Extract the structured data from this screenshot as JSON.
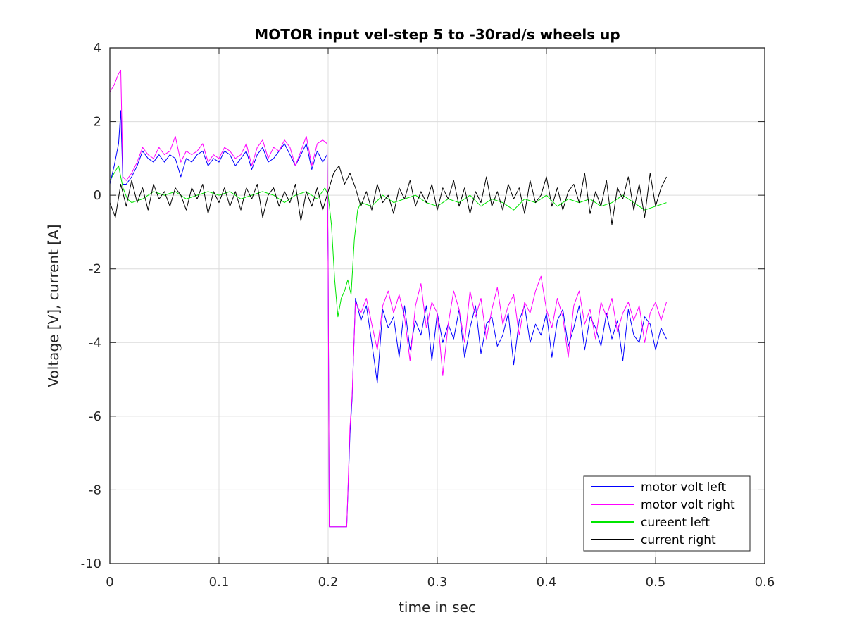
{
  "chart_data": {
    "type": "line",
    "title": "MOTOR input vel-step 5 to -30rad/s wheels up",
    "xlabel": "time in sec",
    "ylabel": "Voltage [V], current [A]",
    "xlim": [
      0,
      0.6
    ],
    "ylim": [
      -10,
      4
    ],
    "xticks": [
      0,
      0.1,
      0.2,
      0.3,
      0.4,
      0.5,
      0.6
    ],
    "xtick_labels": [
      "0",
      "0.1",
      "0.2",
      "0.3",
      "0.4",
      "0.5",
      "0.6"
    ],
    "yticks": [
      -10,
      -8,
      -6,
      -4,
      -2,
      0,
      2,
      4
    ],
    "ytick_labels": [
      "-10",
      "-8",
      "-6",
      "-4",
      "-2",
      "0",
      "2",
      "4"
    ],
    "grid": true,
    "legend_position": "bottom-right",
    "series": [
      {
        "name": "motor volt left",
        "color": "#0000ff",
        "x": [
          0,
          0.004,
          0.008,
          0.01,
          0.012,
          0.015,
          0.02,
          0.025,
          0.03,
          0.035,
          0.04,
          0.045,
          0.05,
          0.055,
          0.06,
          0.065,
          0.07,
          0.075,
          0.08,
          0.085,
          0.09,
          0.095,
          0.1,
          0.105,
          0.11,
          0.115,
          0.12,
          0.125,
          0.13,
          0.135,
          0.14,
          0.145,
          0.15,
          0.155,
          0.16,
          0.165,
          0.17,
          0.175,
          0.18,
          0.185,
          0.19,
          0.195,
          0.199,
          0.2,
          0.201,
          0.205,
          0.21,
          0.215,
          0.217,
          0.22,
          0.222,
          0.225,
          0.23,
          0.235,
          0.24,
          0.245,
          0.25,
          0.255,
          0.26,
          0.265,
          0.27,
          0.275,
          0.28,
          0.285,
          0.29,
          0.295,
          0.3,
          0.305,
          0.31,
          0.315,
          0.32,
          0.325,
          0.33,
          0.335,
          0.34,
          0.345,
          0.35,
          0.355,
          0.36,
          0.365,
          0.37,
          0.375,
          0.38,
          0.385,
          0.39,
          0.395,
          0.4,
          0.405,
          0.41,
          0.415,
          0.42,
          0.425,
          0.43,
          0.435,
          0.44,
          0.445,
          0.45,
          0.455,
          0.46,
          0.465,
          0.47,
          0.475,
          0.48,
          0.485,
          0.49,
          0.495,
          0.5,
          0.505,
          0.51
        ],
        "y": [
          0.3,
          0.8,
          1.4,
          2.3,
          0.3,
          0.3,
          0.5,
          0.8,
          1.2,
          1.0,
          0.9,
          1.1,
          0.9,
          1.1,
          1.0,
          0.5,
          1.0,
          0.9,
          1.1,
          1.2,
          0.8,
          1.0,
          0.9,
          1.2,
          1.1,
          0.8,
          1.0,
          1.2,
          0.7,
          1.1,
          1.3,
          0.9,
          1.0,
          1.2,
          1.4,
          1.1,
          0.8,
          1.1,
          1.4,
          0.7,
          1.2,
          0.9,
          1.1,
          -1.8,
          -9.0,
          -9.0,
          -9.0,
          -9.0,
          -9.0,
          -6.5,
          -5.5,
          -2.8,
          -3.4,
          -3.0,
          -4.0,
          -5.1,
          -3.1,
          -3.6,
          -3.3,
          -4.4,
          -3.0,
          -4.2,
          -3.4,
          -3.8,
          -3.0,
          -4.5,
          -3.2,
          -4.0,
          -3.5,
          -3.9,
          -3.1,
          -4.4,
          -3.6,
          -3.0,
          -4.3,
          -3.5,
          -3.3,
          -4.1,
          -3.8,
          -3.2,
          -4.6,
          -3.4,
          -3.0,
          -4.0,
          -3.5,
          -3.8,
          -3.2,
          -4.4,
          -3.4,
          -3.1,
          -4.1,
          -3.6,
          -3.0,
          -4.2,
          -3.3,
          -3.6,
          -4.1,
          -3.2,
          -3.9,
          -3.4,
          -4.5,
          -3.1,
          -3.8,
          -4.0,
          -3.3,
          -3.5,
          -4.2,
          -3.6,
          -3.9
        ]
      },
      {
        "name": "motor volt right",
        "color": "#ff00ff",
        "x": [
          0,
          0.004,
          0.008,
          0.01,
          0.012,
          0.015,
          0.02,
          0.025,
          0.03,
          0.035,
          0.04,
          0.045,
          0.05,
          0.055,
          0.06,
          0.065,
          0.07,
          0.075,
          0.08,
          0.085,
          0.09,
          0.095,
          0.1,
          0.105,
          0.11,
          0.115,
          0.12,
          0.125,
          0.13,
          0.135,
          0.14,
          0.145,
          0.15,
          0.155,
          0.16,
          0.165,
          0.17,
          0.175,
          0.18,
          0.185,
          0.19,
          0.195,
          0.199,
          0.2,
          0.201,
          0.205,
          0.21,
          0.215,
          0.217,
          0.22,
          0.222,
          0.225,
          0.23,
          0.235,
          0.24,
          0.245,
          0.25,
          0.255,
          0.26,
          0.265,
          0.27,
          0.275,
          0.28,
          0.285,
          0.29,
          0.295,
          0.3,
          0.305,
          0.31,
          0.315,
          0.32,
          0.325,
          0.33,
          0.335,
          0.34,
          0.345,
          0.35,
          0.355,
          0.36,
          0.365,
          0.37,
          0.375,
          0.38,
          0.385,
          0.39,
          0.395,
          0.4,
          0.405,
          0.41,
          0.415,
          0.42,
          0.425,
          0.43,
          0.435,
          0.44,
          0.445,
          0.45,
          0.455,
          0.46,
          0.465,
          0.47,
          0.475,
          0.48,
          0.485,
          0.49,
          0.495,
          0.5,
          0.505,
          0.51
        ],
        "y": [
          2.8,
          3.0,
          3.3,
          3.4,
          0.5,
          0.4,
          0.6,
          0.9,
          1.3,
          1.1,
          1.0,
          1.3,
          1.1,
          1.2,
          1.6,
          0.9,
          1.2,
          1.1,
          1.2,
          1.4,
          0.9,
          1.1,
          1.0,
          1.3,
          1.2,
          1.0,
          1.1,
          1.4,
          0.8,
          1.3,
          1.5,
          1.0,
          1.3,
          1.2,
          1.5,
          1.3,
          0.8,
          1.2,
          1.6,
          0.8,
          1.4,
          1.5,
          1.4,
          -1.9,
          -9.0,
          -9.0,
          -9.0,
          -9.0,
          -9.0,
          -6.3,
          -5.4,
          -2.9,
          -3.2,
          -2.8,
          -3.5,
          -4.2,
          -3.0,
          -2.6,
          -3.2,
          -2.7,
          -3.3,
          -4.5,
          -3.0,
          -2.4,
          -3.6,
          -2.9,
          -3.2,
          -4.9,
          -3.5,
          -2.6,
          -3.1,
          -4.0,
          -2.6,
          -3.3,
          -2.8,
          -3.9,
          -3.1,
          -2.5,
          -3.5,
          -3.0,
          -2.7,
          -3.8,
          -2.9,
          -3.2,
          -2.6,
          -2.2,
          -3.1,
          -3.6,
          -2.8,
          -3.3,
          -4.4,
          -3.0,
          -2.6,
          -3.5,
          -3.1,
          -3.9,
          -2.9,
          -3.3,
          -2.8,
          -3.7,
          -3.2,
          -2.9,
          -3.4,
          -3.0,
          -4.0,
          -3.2,
          -2.9,
          -3.4,
          -2.9
        ]
      },
      {
        "name": "cureent left",
        "color": "#00e600",
        "x": [
          0,
          0.004,
          0.008,
          0.012,
          0.016,
          0.02,
          0.03,
          0.04,
          0.05,
          0.06,
          0.07,
          0.08,
          0.09,
          0.1,
          0.11,
          0.12,
          0.13,
          0.14,
          0.15,
          0.16,
          0.17,
          0.18,
          0.19,
          0.197,
          0.2,
          0.203,
          0.206,
          0.209,
          0.212,
          0.215,
          0.218,
          0.221,
          0.224,
          0.227,
          0.23,
          0.24,
          0.25,
          0.26,
          0.27,
          0.28,
          0.29,
          0.3,
          0.31,
          0.32,
          0.33,
          0.34,
          0.35,
          0.36,
          0.37,
          0.38,
          0.39,
          0.4,
          0.41,
          0.42,
          0.43,
          0.44,
          0.45,
          0.46,
          0.47,
          0.48,
          0.49,
          0.5,
          0.51
        ],
        "y": [
          0.4,
          0.6,
          0.8,
          0.2,
          -0.1,
          -0.2,
          -0.1,
          0.1,
          0.0,
          0.1,
          -0.1,
          0.0,
          0.1,
          0.0,
          0.1,
          -0.1,
          0.0,
          0.1,
          0.0,
          -0.2,
          0.0,
          0.1,
          -0.1,
          0.2,
          0.0,
          -0.8,
          -2.3,
          -3.3,
          -2.8,
          -2.6,
          -2.3,
          -2.7,
          -1.2,
          -0.4,
          -0.2,
          -0.3,
          0.0,
          -0.2,
          -0.1,
          0.0,
          -0.2,
          -0.3,
          -0.1,
          -0.2,
          0.0,
          -0.3,
          -0.1,
          -0.2,
          -0.4,
          -0.1,
          -0.2,
          0.0,
          -0.3,
          -0.1,
          -0.2,
          -0.1,
          -0.3,
          -0.2,
          0.0,
          -0.2,
          -0.4,
          -0.3,
          -0.2
        ]
      },
      {
        "name": "current right",
        "color": "#000000",
        "x": [
          0,
          0.005,
          0.01,
          0.015,
          0.02,
          0.025,
          0.03,
          0.035,
          0.04,
          0.045,
          0.05,
          0.055,
          0.06,
          0.065,
          0.07,
          0.075,
          0.08,
          0.085,
          0.09,
          0.095,
          0.1,
          0.105,
          0.11,
          0.115,
          0.12,
          0.125,
          0.13,
          0.135,
          0.14,
          0.145,
          0.15,
          0.155,
          0.16,
          0.165,
          0.17,
          0.175,
          0.18,
          0.185,
          0.19,
          0.195,
          0.2,
          0.205,
          0.21,
          0.215,
          0.22,
          0.225,
          0.23,
          0.235,
          0.24,
          0.245,
          0.25,
          0.255,
          0.26,
          0.265,
          0.27,
          0.275,
          0.28,
          0.285,
          0.29,
          0.295,
          0.3,
          0.305,
          0.31,
          0.315,
          0.32,
          0.325,
          0.33,
          0.335,
          0.34,
          0.345,
          0.35,
          0.355,
          0.36,
          0.365,
          0.37,
          0.375,
          0.38,
          0.385,
          0.39,
          0.395,
          0.4,
          0.405,
          0.41,
          0.415,
          0.42,
          0.425,
          0.43,
          0.435,
          0.44,
          0.445,
          0.45,
          0.455,
          0.46,
          0.465,
          0.47,
          0.475,
          0.48,
          0.485,
          0.49,
          0.495,
          0.5,
          0.505,
          0.51
        ],
        "y": [
          -0.2,
          -0.6,
          0.3,
          -0.3,
          0.4,
          -0.2,
          0.2,
          -0.4,
          0.3,
          -0.1,
          0.1,
          -0.3,
          0.2,
          0.0,
          -0.4,
          0.2,
          -0.1,
          0.3,
          -0.5,
          0.1,
          -0.2,
          0.2,
          -0.3,
          0.1,
          -0.4,
          0.2,
          -0.1,
          0.3,
          -0.6,
          0.0,
          0.2,
          -0.3,
          0.1,
          -0.2,
          0.3,
          -0.7,
          0.1,
          -0.3,
          0.2,
          -0.4,
          0.1,
          0.6,
          0.8,
          0.3,
          0.6,
          0.2,
          -0.3,
          0.1,
          -0.4,
          0.3,
          -0.2,
          0.0,
          -0.5,
          0.2,
          -0.1,
          0.4,
          -0.3,
          0.1,
          -0.2,
          0.3,
          -0.4,
          0.2,
          -0.1,
          0.4,
          -0.3,
          0.2,
          -0.5,
          0.1,
          -0.2,
          0.5,
          -0.3,
          0.1,
          -0.4,
          0.3,
          -0.1,
          0.2,
          -0.5,
          0.4,
          -0.2,
          0.0,
          0.5,
          -0.3,
          0.2,
          -0.4,
          0.1,
          0.3,
          -0.2,
          0.6,
          -0.5,
          0.1,
          -0.3,
          0.4,
          -0.8,
          0.2,
          -0.1,
          0.5,
          -0.4,
          0.3,
          -0.6,
          0.6,
          -0.3,
          0.2,
          0.5
        ]
      }
    ]
  }
}
